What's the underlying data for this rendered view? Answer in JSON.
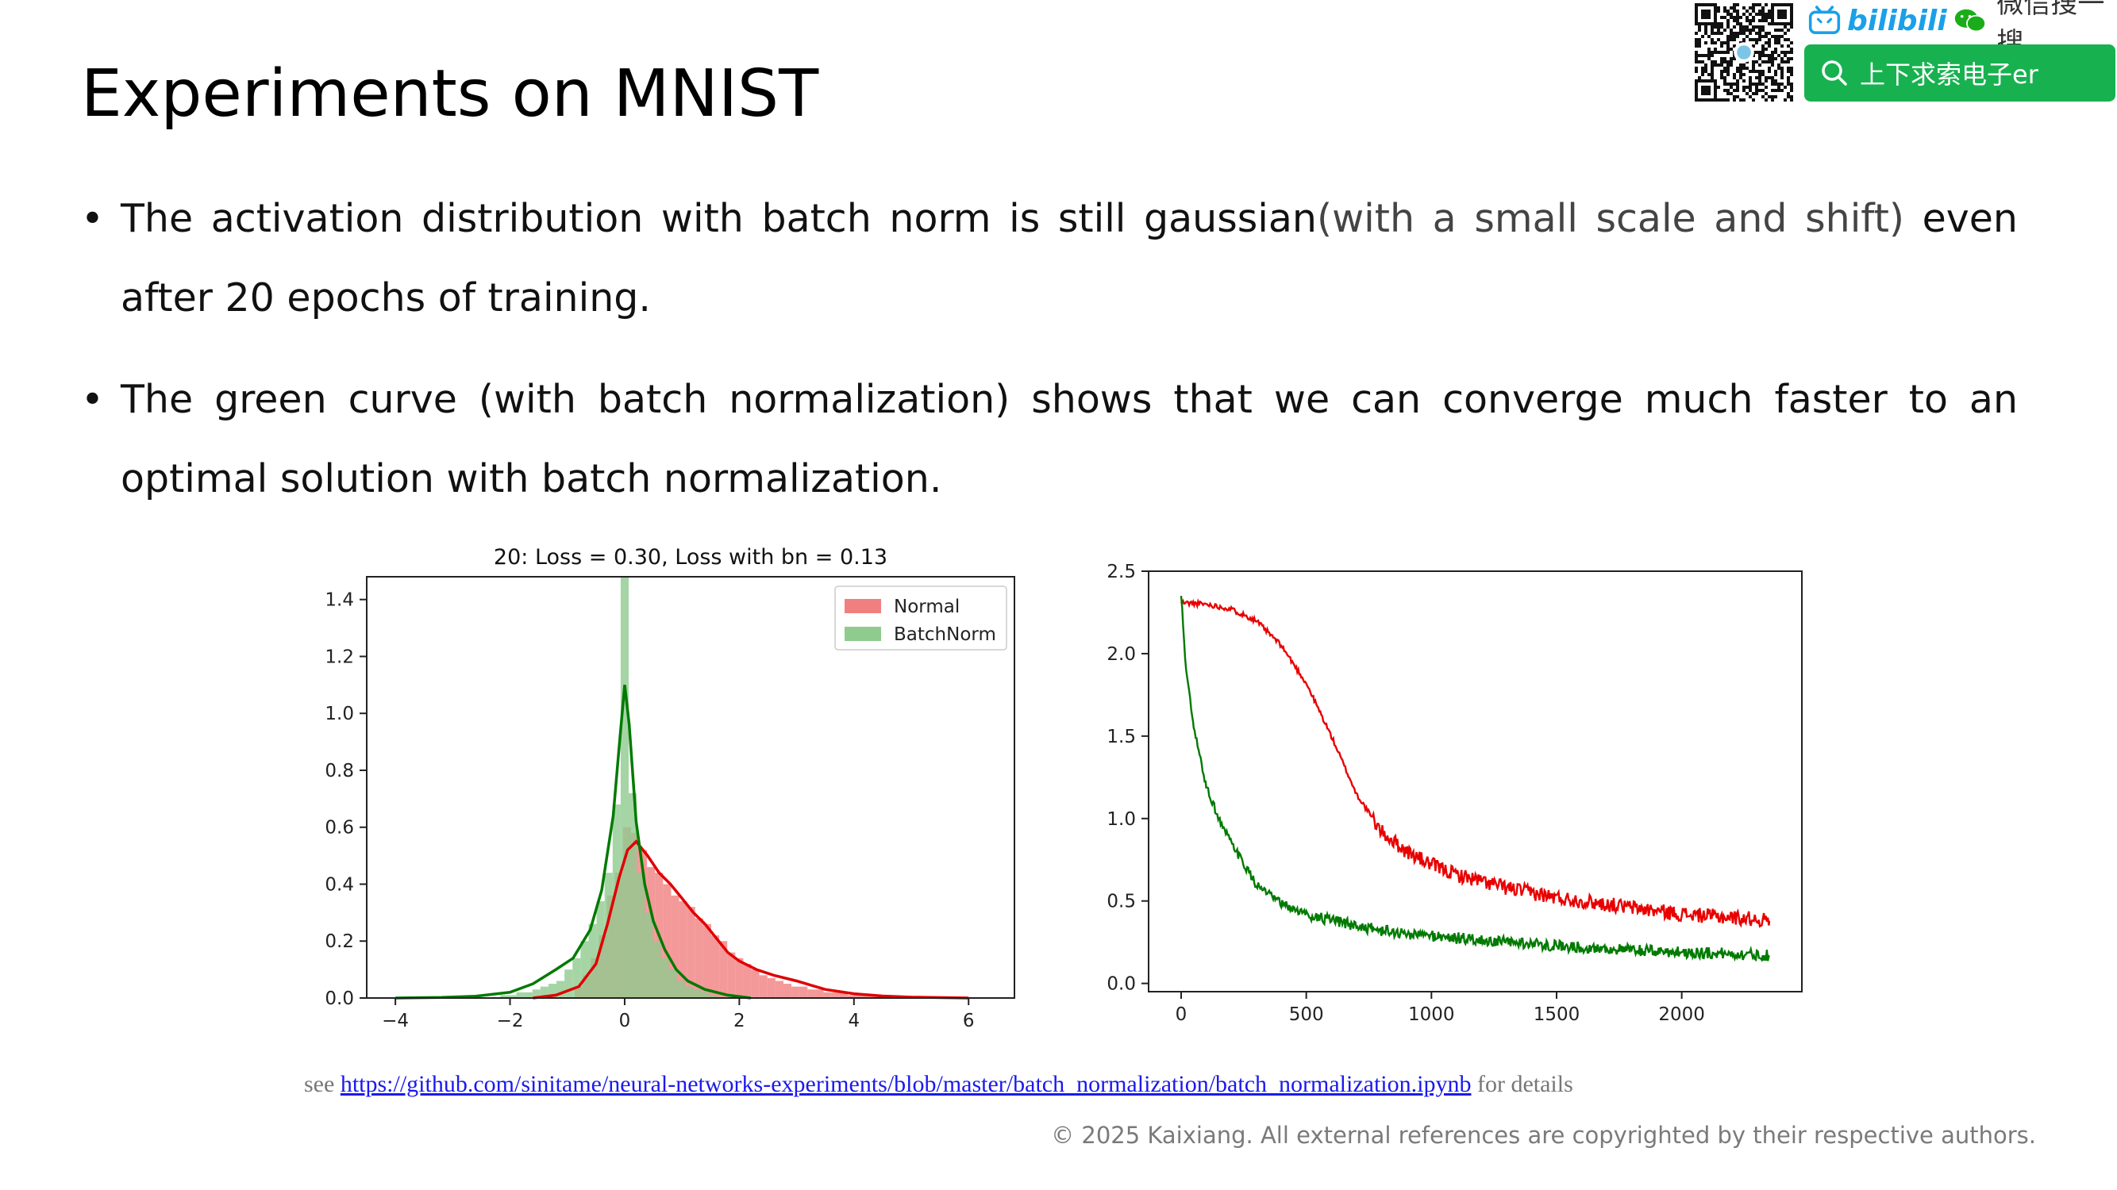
{
  "slide": {
    "title": "Experiments on MNIST",
    "bullets": [
      {
        "text_a": "The activation distribution with batch norm is still gaussian",
        "text_b": "(with a small scale and shift)",
        "text_c": " even after 20 epochs of training."
      },
      {
        "text_a": "The green curve (with batch normalization) shows that we can converge much faster to an optimal solution with batch normalization."
      }
    ],
    "bullet_glyph": "•"
  },
  "header": {
    "bilibili_logo": "bilibili",
    "wechat_label": "微信搜一搜",
    "search_text": "上下求索电子er",
    "icons": [
      "qr-code-icon",
      "bilibili-tv-icon",
      "wechat-icon",
      "search-icon"
    ],
    "colors": {
      "bilibili": "#1aa0e8",
      "search_bg": "#17b24f"
    }
  },
  "footer": {
    "see": "see ",
    "link": "https://github.com/sinitame/neural-networks-experiments/blob/master/batch_normalization/batch_normalization.ipynb",
    "for_details": " for details",
    "copyright": "© 2025 Kaixiang. All external references are copyrighted by their respective authors."
  },
  "chart_data": [
    {
      "type": "histogram+kde",
      "title": "20: Loss = 0.30, Loss with bn = 0.13",
      "xlim": [
        -4.5,
        6.8
      ],
      "ylim": [
        0,
        1.48
      ],
      "xticks": [
        -4,
        -2,
        0,
        2,
        4,
        6
      ],
      "yticks": [
        0.0,
        0.2,
        0.4,
        0.6,
        0.8,
        1.0,
        1.2,
        1.4
      ],
      "legend_position": "top-right",
      "series": [
        {
          "name": "Normal",
          "color": "#f08080",
          "line_color": "#e00000",
          "bin_width": 0.14,
          "bins": [
            [
              -0.8,
              0.04
            ],
            [
              -0.66,
              0.08
            ],
            [
              -0.52,
              0.14
            ],
            [
              -0.38,
              0.22
            ],
            [
              -0.24,
              0.36
            ],
            [
              -0.1,
              0.44
            ],
            [
              0.04,
              0.6
            ],
            [
              0.18,
              0.58
            ],
            [
              0.32,
              0.52
            ],
            [
              0.46,
              0.46
            ],
            [
              0.6,
              0.44
            ],
            [
              0.74,
              0.4
            ],
            [
              0.88,
              0.36
            ],
            [
              1.02,
              0.34
            ],
            [
              1.16,
              0.32
            ],
            [
              1.3,
              0.28
            ],
            [
              1.44,
              0.26
            ],
            [
              1.58,
              0.22
            ],
            [
              1.72,
              0.2
            ],
            [
              1.86,
              0.16
            ],
            [
              2.0,
              0.14
            ],
            [
              2.14,
              0.12
            ],
            [
              2.28,
              0.1
            ],
            [
              2.42,
              0.08
            ],
            [
              2.56,
              0.07
            ],
            [
              2.7,
              0.06
            ],
            [
              2.84,
              0.05
            ],
            [
              2.98,
              0.04
            ],
            [
              3.12,
              0.04
            ],
            [
              3.26,
              0.03
            ],
            [
              3.4,
              0.03
            ],
            [
              3.54,
              0.02
            ],
            [
              3.68,
              0.02
            ],
            [
              3.82,
              0.02
            ],
            [
              3.96,
              0.01
            ],
            [
              4.1,
              0.01
            ],
            [
              4.24,
              0.01
            ],
            [
              4.38,
              0.01
            ]
          ],
          "kde": [
            [
              -1.6,
              0.0
            ],
            [
              -1.2,
              0.01
            ],
            [
              -0.8,
              0.04
            ],
            [
              -0.5,
              0.12
            ],
            [
              -0.3,
              0.26
            ],
            [
              -0.1,
              0.42
            ],
            [
              0.05,
              0.52
            ],
            [
              0.2,
              0.55
            ],
            [
              0.4,
              0.5
            ],
            [
              0.6,
              0.44
            ],
            [
              0.8,
              0.4
            ],
            [
              1.0,
              0.35
            ],
            [
              1.2,
              0.3
            ],
            [
              1.4,
              0.26
            ],
            [
              1.6,
              0.21
            ],
            [
              1.8,
              0.16
            ],
            [
              2.0,
              0.13
            ],
            [
              2.3,
              0.1
            ],
            [
              2.6,
              0.08
            ],
            [
              3.0,
              0.06
            ],
            [
              3.5,
              0.03
            ],
            [
              4.0,
              0.015
            ],
            [
              4.5,
              0.007
            ],
            [
              5.0,
              0.003
            ],
            [
              6.0,
              0.0
            ]
          ]
        },
        {
          "name": "BatchNorm",
          "color": "#8fcb8f",
          "line_color": "#007a00",
          "bin_width": 0.14,
          "bins": [
            [
              -2.1,
              0.01
            ],
            [
              -1.96,
              0.01
            ],
            [
              -1.82,
              0.02
            ],
            [
              -1.68,
              0.02
            ],
            [
              -1.54,
              0.03
            ],
            [
              -1.4,
              0.04
            ],
            [
              -1.26,
              0.05
            ],
            [
              -1.12,
              0.06
            ],
            [
              -0.98,
              0.1
            ],
            [
              -0.84,
              0.14
            ],
            [
              -0.7,
              0.2
            ],
            [
              -0.56,
              0.26
            ],
            [
              -0.42,
              0.34
            ],
            [
              -0.28,
              0.44
            ],
            [
              -0.14,
              0.68
            ],
            [
              0.0,
              1.48
            ],
            [
              0.14,
              0.72
            ],
            [
              0.28,
              0.44
            ],
            [
              0.42,
              0.3
            ],
            [
              0.56,
              0.2
            ],
            [
              0.7,
              0.14
            ],
            [
              0.84,
              0.1
            ],
            [
              0.98,
              0.06
            ],
            [
              1.12,
              0.04
            ],
            [
              1.26,
              0.03
            ],
            [
              1.4,
              0.02
            ],
            [
              1.54,
              0.01
            ]
          ],
          "kde": [
            [
              -4.0,
              0.0
            ],
            [
              -3.2,
              0.002
            ],
            [
              -2.6,
              0.006
            ],
            [
              -2.0,
              0.02
            ],
            [
              -1.6,
              0.05
            ],
            [
              -1.2,
              0.1
            ],
            [
              -0.9,
              0.14
            ],
            [
              -0.6,
              0.24
            ],
            [
              -0.4,
              0.38
            ],
            [
              -0.2,
              0.64
            ],
            [
              -0.08,
              0.92
            ],
            [
              0.0,
              1.1
            ],
            [
              0.08,
              0.96
            ],
            [
              0.2,
              0.62
            ],
            [
              0.35,
              0.4
            ],
            [
              0.5,
              0.27
            ],
            [
              0.7,
              0.17
            ],
            [
              0.9,
              0.1
            ],
            [
              1.1,
              0.06
            ],
            [
              1.4,
              0.03
            ],
            [
              1.8,
              0.01
            ],
            [
              2.2,
              0.0
            ]
          ]
        }
      ]
    },
    {
      "type": "line",
      "title": "",
      "xlim": [
        -130,
        2480
      ],
      "ylim": [
        -0.05,
        2.5
      ],
      "xticks": [
        0,
        500,
        1000,
        1500,
        2000
      ],
      "yticks": [
        0.0,
        0.5,
        1.0,
        1.5,
        2.0,
        2.5
      ],
      "series": [
        {
          "name": "",
          "color": "#e80000",
          "values": [
            [
              0,
              2.31
            ],
            [
              100,
              2.3
            ],
            [
              200,
              2.27
            ],
            [
              300,
              2.2
            ],
            [
              400,
              2.05
            ],
            [
              500,
              1.82
            ],
            [
              600,
              1.5
            ],
            [
              700,
              1.15
            ],
            [
              800,
              0.92
            ],
            [
              900,
              0.8
            ],
            [
              1000,
              0.72
            ],
            [
              1100,
              0.66
            ],
            [
              1200,
              0.62
            ],
            [
              1300,
              0.58
            ],
            [
              1400,
              0.55
            ],
            [
              1500,
              0.52
            ],
            [
              1600,
              0.5
            ],
            [
              1700,
              0.48
            ],
            [
              1800,
              0.46
            ],
            [
              1900,
              0.44
            ],
            [
              2000,
              0.42
            ],
            [
              2100,
              0.41
            ],
            [
              2200,
              0.4
            ],
            [
              2300,
              0.39
            ],
            [
              2350,
              0.38
            ]
          ]
        },
        {
          "name": "",
          "color": "#007a00",
          "values": [
            [
              0,
              2.35
            ],
            [
              20,
              1.9
            ],
            [
              50,
              1.55
            ],
            [
              100,
              1.2
            ],
            [
              150,
              1.0
            ],
            [
              200,
              0.85
            ],
            [
              300,
              0.6
            ],
            [
              400,
              0.48
            ],
            [
              500,
              0.42
            ],
            [
              600,
              0.38
            ],
            [
              700,
              0.35
            ],
            [
              800,
              0.32
            ],
            [
              900,
              0.3
            ],
            [
              1000,
              0.29
            ],
            [
              1200,
              0.26
            ],
            [
              1400,
              0.24
            ],
            [
              1600,
              0.22
            ],
            [
              1800,
              0.2
            ],
            [
              2000,
              0.19
            ],
            [
              2200,
              0.18
            ],
            [
              2350,
              0.17
            ]
          ]
        }
      ]
    }
  ]
}
